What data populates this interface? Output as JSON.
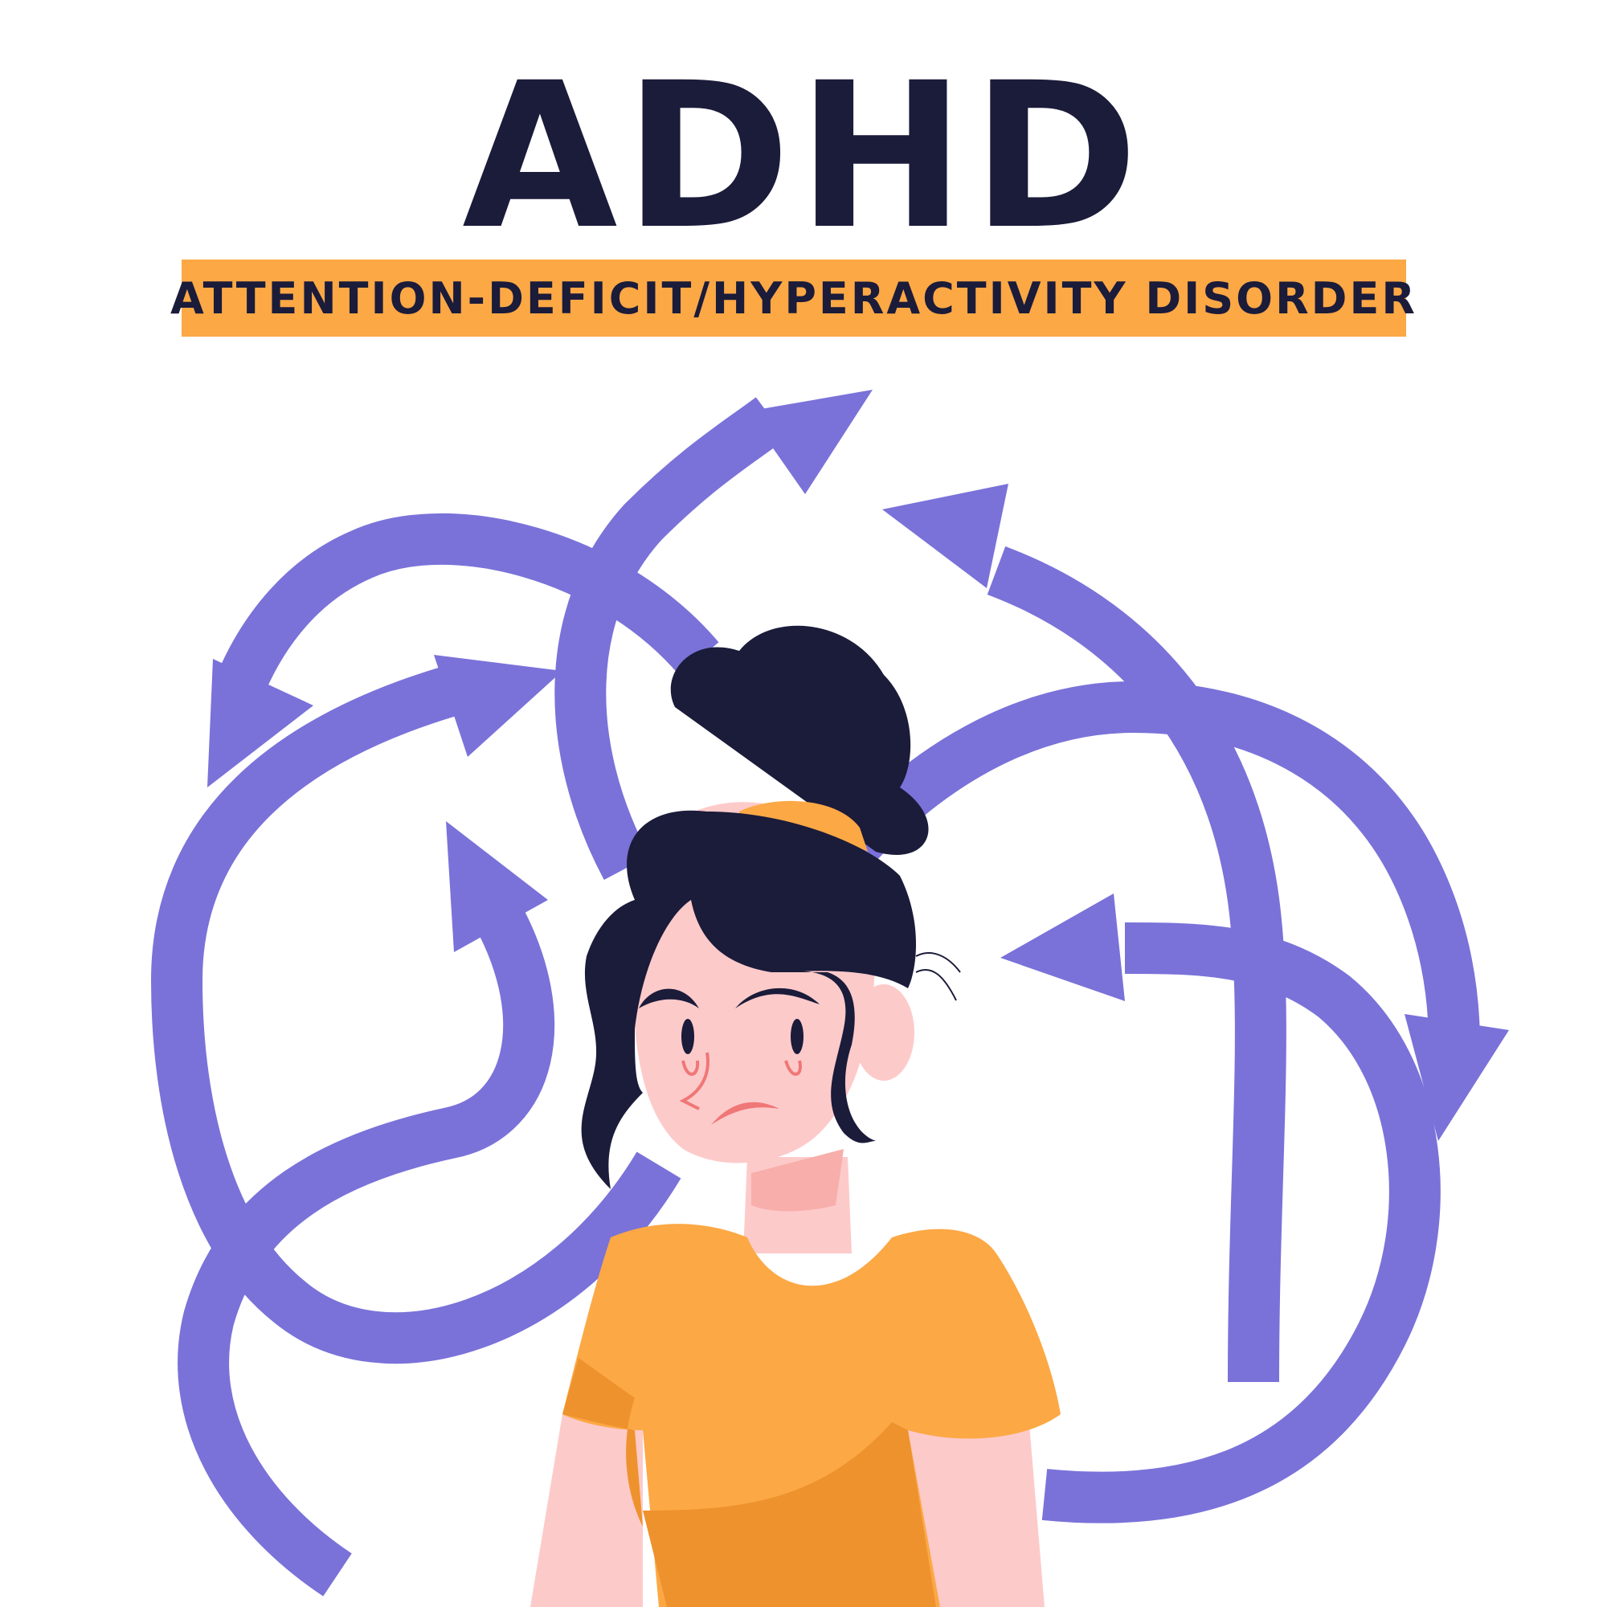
{
  "header": {
    "title": "ADHD",
    "subtitle": "ATTENTION-DEFICIT/HYPERACTIVITY DISORDER"
  },
  "colors": {
    "title_text": "#1b1b3a",
    "banner": "#fca845",
    "arrow": "#7a72d9",
    "arrow_shadow": "#5b55c6",
    "skin": "#fdcaca",
    "hair": "#1b1b3a",
    "shirt": "#fca845",
    "shirt_shade": "#ee922d",
    "cheek_lines": "#f07777"
  },
  "illustration": {
    "arrow_count": 7,
    "figure": "woman-with-bun-frowning"
  }
}
